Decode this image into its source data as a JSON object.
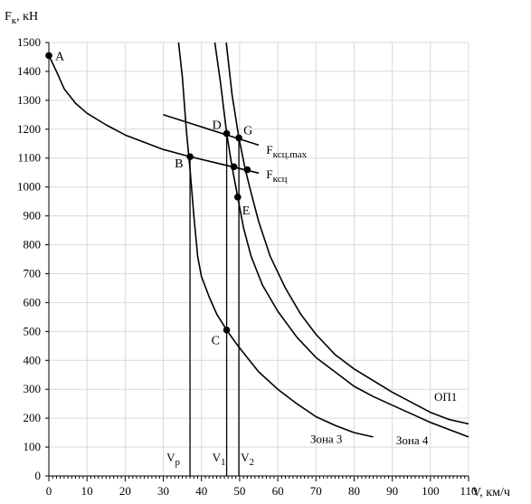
{
  "chart_data": {
    "type": "line",
    "ylabel": "F",
    "ylabel_sub": "к",
    "ylabel_unit": ", кН",
    "xlabel": "V, км/ч",
    "xlim": [
      0,
      110
    ],
    "ylim": [
      0,
      1500
    ],
    "x_ticks": [
      0,
      10,
      20,
      30,
      40,
      50,
      60,
      70,
      80,
      90,
      100,
      110
    ],
    "y_ticks": [
      0,
      100,
      200,
      300,
      400,
      500,
      600,
      700,
      800,
      900,
      1000,
      1100,
      1200,
      1300,
      1400,
      1500
    ],
    "grid": true,
    "series": [
      {
        "key": "adhesion",
        "points": [
          [
            0,
            1455
          ],
          [
            2,
            1400
          ],
          [
            4,
            1340
          ],
          [
            7,
            1290
          ],
          [
            10,
            1255
          ],
          [
            15,
            1215
          ],
          [
            20,
            1180
          ],
          [
            25,
            1155
          ],
          [
            30,
            1130
          ],
          [
            35,
            1112
          ],
          [
            37,
            1105
          ]
        ]
      },
      {
        "key": "fmax",
        "points": [
          [
            30,
            1250
          ],
          [
            55,
            1145
          ]
        ]
      },
      {
        "key": "fkcc",
        "points": [
          [
            37,
            1105
          ],
          [
            55,
            1048
          ]
        ]
      },
      {
        "key": "zone3",
        "points": [
          [
            34,
            1500
          ],
          [
            35,
            1380
          ],
          [
            36,
            1200
          ],
          [
            37,
            1060
          ],
          [
            38,
            900
          ],
          [
            39,
            760
          ],
          [
            40,
            690
          ],
          [
            42,
            620
          ],
          [
            44,
            560
          ],
          [
            46.6,
            505
          ],
          [
            49,
            460
          ],
          [
            52,
            410
          ],
          [
            55,
            360
          ],
          [
            60,
            300
          ],
          [
            65,
            250
          ],
          [
            70,
            205
          ],
          [
            75,
            175
          ],
          [
            80,
            150
          ],
          [
            85,
            135
          ]
        ]
      },
      {
        "key": "zone4",
        "points": [
          [
            43.5,
            1500
          ],
          [
            45,
            1360
          ],
          [
            46.6,
            1185
          ],
          [
            48,
            1070
          ],
          [
            49.5,
            965
          ],
          [
            51,
            860
          ],
          [
            53,
            760
          ],
          [
            56,
            660
          ],
          [
            60,
            570
          ],
          [
            65,
            480
          ],
          [
            70,
            410
          ],
          [
            75,
            360
          ],
          [
            80,
            310
          ],
          [
            85,
            275
          ],
          [
            90,
            245
          ],
          [
            95,
            215
          ],
          [
            100,
            185
          ],
          [
            105,
            160
          ],
          [
            110,
            135
          ]
        ]
      },
      {
        "key": "op1",
        "points": [
          [
            46.5,
            1500
          ],
          [
            48,
            1320
          ],
          [
            49.8,
            1170
          ],
          [
            51.5,
            1060
          ],
          [
            53,
            980
          ],
          [
            55,
            880
          ],
          [
            58,
            760
          ],
          [
            62,
            650
          ],
          [
            66,
            560
          ],
          [
            70,
            490
          ],
          [
            75,
            420
          ],
          [
            80,
            370
          ],
          [
            85,
            330
          ],
          [
            90,
            290
          ],
          [
            95,
            255
          ],
          [
            100,
            220
          ],
          [
            105,
            195
          ],
          [
            110,
            180
          ]
        ]
      }
    ],
    "verticals": [
      {
        "key": "vp",
        "x": 37,
        "y_top": 1105,
        "label": "V",
        "label_sub": "р"
      },
      {
        "key": "v1",
        "x": 46.6,
        "y_top": 1185,
        "label": "V",
        "label_sub": "1"
      },
      {
        "key": "v2",
        "x": 49.8,
        "y_top": 1170,
        "label": "V",
        "label_sub": "2"
      }
    ],
    "points": [
      {
        "key": "A",
        "label": "A",
        "x": 0,
        "y": 1455
      },
      {
        "key": "B",
        "label": "B",
        "x": 37,
        "y": 1105
      },
      {
        "key": "C",
        "label": "C",
        "x": 46.6,
        "y": 505
      },
      {
        "key": "D",
        "label": "D",
        "x": 46.6,
        "y": 1185
      },
      {
        "key": "G",
        "label": "G",
        "x": 49.8,
        "y": 1170
      },
      {
        "key": "E",
        "label": "E",
        "x": 49.5,
        "y": 965
      },
      {
        "key": "fkcc_pt",
        "label": "",
        "x": 48.5,
        "y": 1070
      },
      {
        "key": "fkcc_end",
        "label": "",
        "x": 52,
        "y": 1060
      }
    ],
    "curve_labels": {
      "fmax": {
        "main": "F",
        "sub": "ксц.max"
      },
      "fkcc": {
        "main": "F",
        "sub": "ксц"
      },
      "zone3": "Зона 3",
      "zone4": "Зона 4",
      "op1": "ОП1"
    }
  }
}
